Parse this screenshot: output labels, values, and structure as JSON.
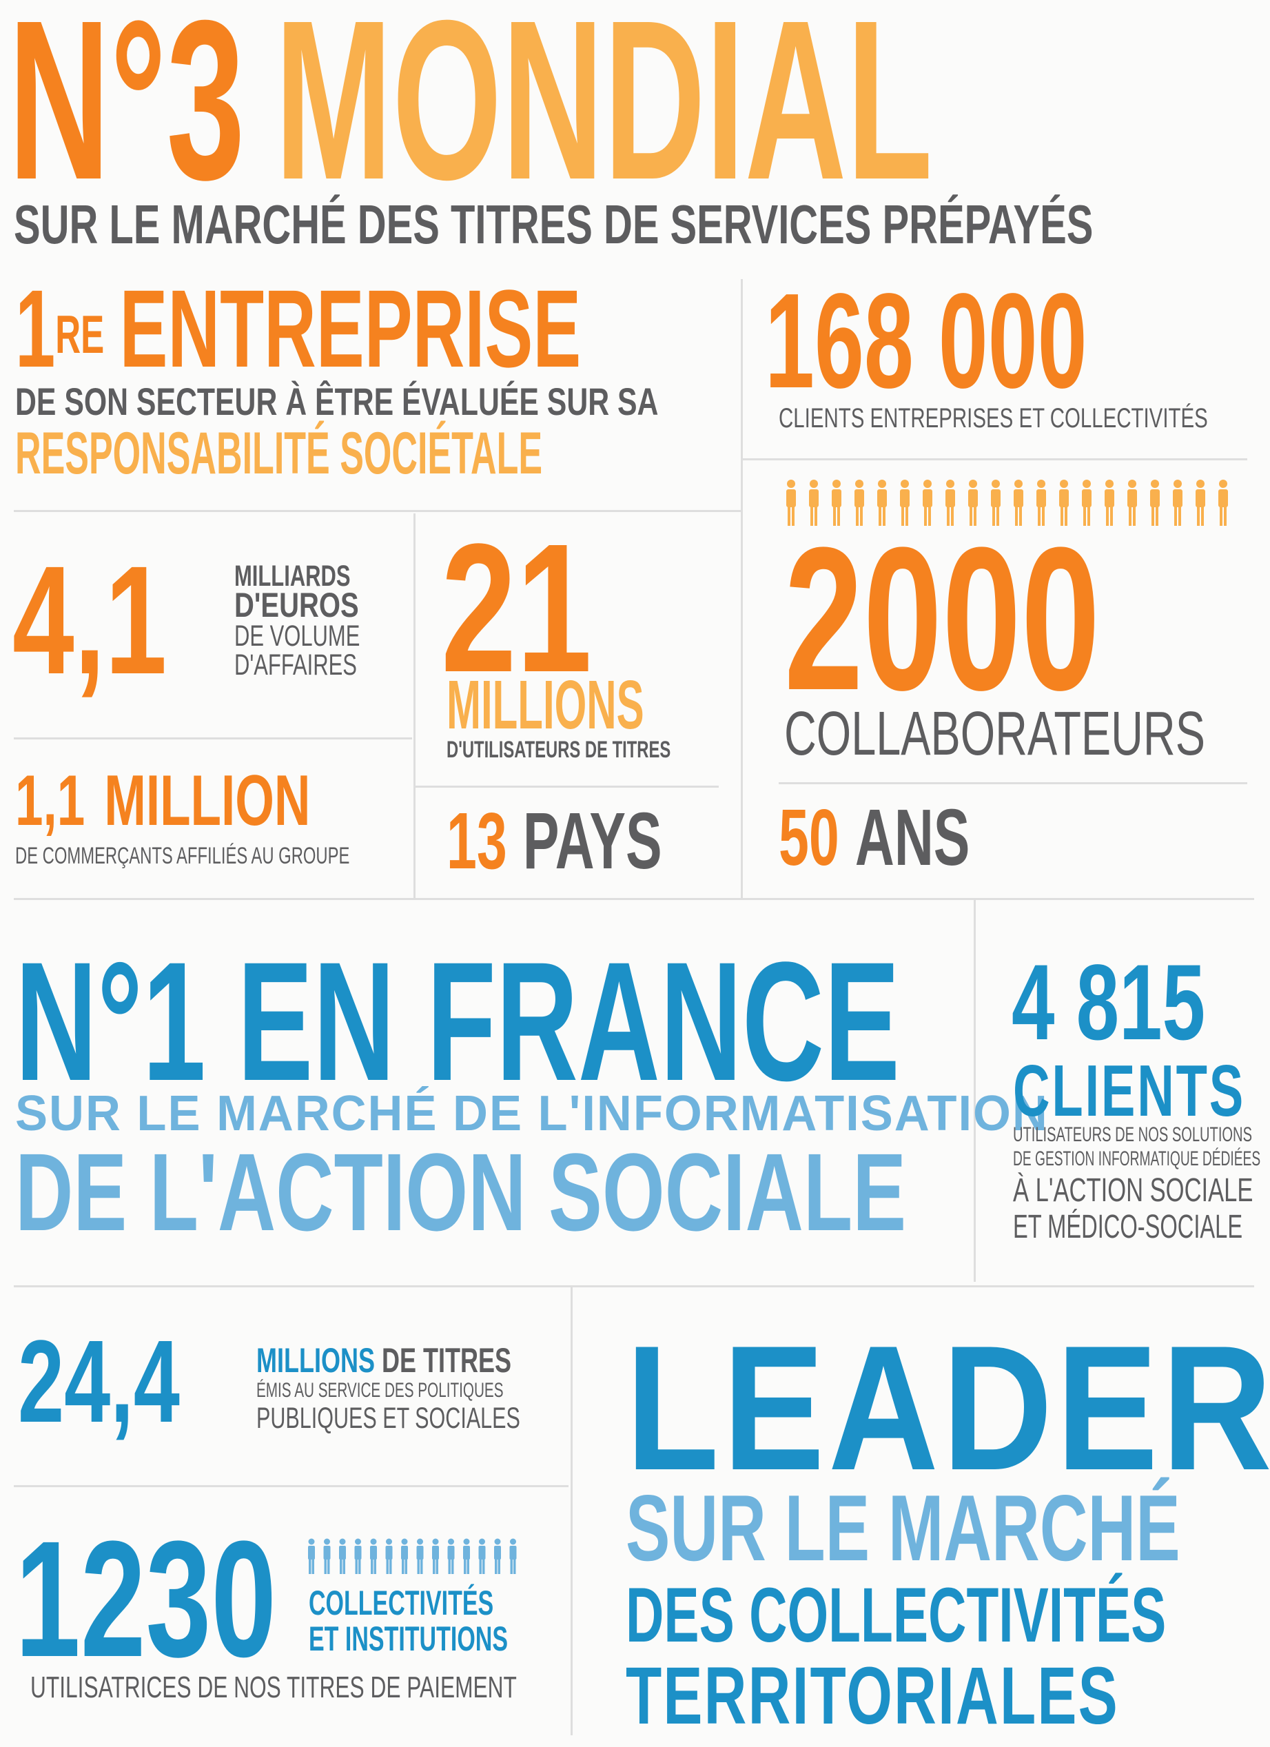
{
  "colors": {
    "orange": "#f5821f",
    "light_orange": "#f9b04d",
    "grey": "#5d5d5f",
    "blue": "#1c90c7",
    "light_blue": "#6fb3dd"
  },
  "mondial": {
    "rank": "N°3",
    "word": "MONDIAL",
    "subtitle": "SUR LE MARCHÉ DES TITRES DE SERVICES PRÉPAYÉS"
  },
  "entreprise": {
    "number": "1",
    "suffix": "RE",
    "word": "ENTREPRISE",
    "line1": "DE SON SECTEUR À ÊTRE ÉVALUÉE SUR SA",
    "line2": "RESPONSABILITÉ SOCIÉTALE"
  },
  "clients": {
    "value": "168 000",
    "label": "CLIENTS ENTREPRISES ET COLLECTIVITÉS"
  },
  "volume": {
    "value": "4,1",
    "l1": "MILLIARDS",
    "l2": "D'EUROS",
    "l3": "DE VOLUME",
    "l4": "D'AFFAIRES"
  },
  "users": {
    "value": "21",
    "unit": "MILLIONS",
    "label": "D'UTILISATEURS DE TITRES"
  },
  "staff": {
    "icon": "people-icon",
    "value": "2000",
    "label": "COLLABORATEURS"
  },
  "merchants": {
    "value": "1,1",
    "unit": "MILLION",
    "label": "DE COMMERÇANTS AFFILIÉS AU GROUPE"
  },
  "countries": {
    "value": "13",
    "unit": "PAYS"
  },
  "years": {
    "value": "50",
    "unit": "ANS"
  },
  "france": {
    "title": "N°1 EN FRANCE",
    "line1": "SUR LE MARCHÉ DE L'INFORMATISATION",
    "line2": "DE L'ACTION SOCIALE"
  },
  "clients_social": {
    "value": "4 815",
    "unit": "CLIENTS",
    "l1": "UTILISATEURS DE NOS SOLUTIONS",
    "l2": "DE GESTION INFORMATIQUE DÉDIÉES",
    "l3": "À L'ACTION SOCIALE",
    "l4": "ET MÉDICO-SOCIALE"
  },
  "titres": {
    "value": "24,4",
    "unit": "MILLIONS",
    "unit2": "DE TITRES",
    "l1": "ÉMIS AU SERVICE DES POLITIQUES",
    "l2": "PUBLIQUES ET SOCIALES"
  },
  "collectivites": {
    "icon": "people-icon",
    "value": "1230",
    "l1": "COLLECTIVITÉS",
    "l2": "ET INSTITUTIONS",
    "label": "UTILISATRICES DE NOS TITRES DE PAIEMENT"
  },
  "leader": {
    "title": "LEADER",
    "l1": "SUR LE MARCHÉ",
    "l2": "DES COLLECTIVITÉS",
    "l3": "TERRITORIALES"
  }
}
